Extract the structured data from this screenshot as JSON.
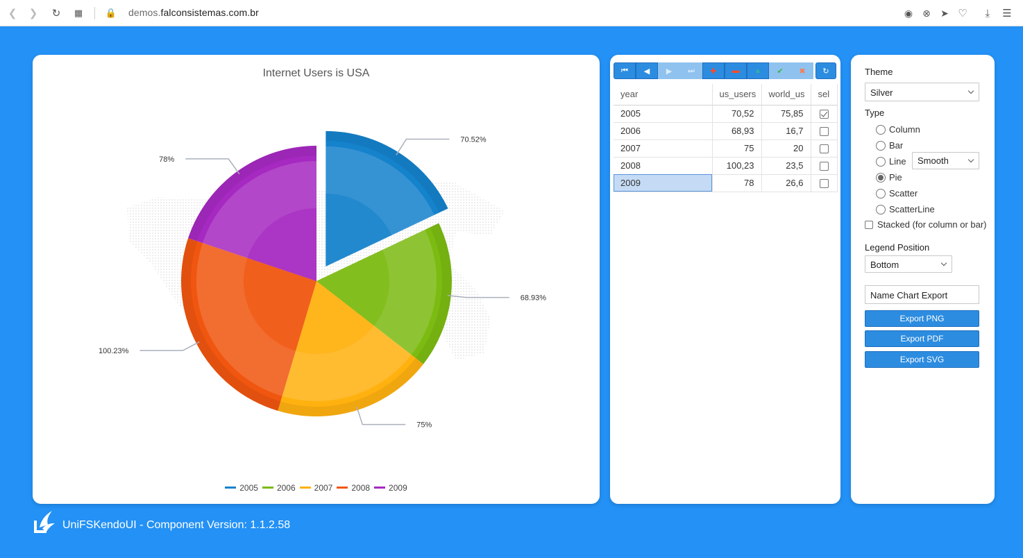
{
  "browser": {
    "url_prefix": "demos.",
    "url_domain": "falconsistemas.com.br"
  },
  "chart_data": {
    "type": "pie",
    "title": "Internet Users is USA",
    "categories": [
      "2005",
      "2006",
      "2007",
      "2008",
      "2009"
    ],
    "values": [
      70.52,
      68.93,
      75,
      100.23,
      78
    ],
    "labels": [
      "70.52%",
      "68.93%",
      "75%",
      "100.23%",
      "78%"
    ],
    "colors": [
      "#1582cc",
      "#7cbb12",
      "#ffb10f",
      "#f0560f",
      "#a629c1"
    ],
    "exploded": "2005",
    "legend_position": "bottom"
  },
  "grid": {
    "columns": [
      "year",
      "us_users",
      "world_us",
      "sel"
    ],
    "rows": [
      {
        "year": "2005",
        "us_users": "70,52",
        "world_us": "75,85",
        "sel": true
      },
      {
        "year": "2006",
        "us_users": "68,93",
        "world_us": "16,7",
        "sel": false
      },
      {
        "year": "2007",
        "us_users": "75",
        "world_us": "20",
        "sel": false
      },
      {
        "year": "2008",
        "us_users": "100,23",
        "world_us": "23,5",
        "sel": false
      },
      {
        "year": "2009",
        "us_users": "78",
        "world_us": "26,6",
        "sel": false
      }
    ],
    "selected_row": 4
  },
  "options": {
    "theme_label": "Theme",
    "theme_value": "Silver",
    "type_label": "Type",
    "types": [
      "Column",
      "Bar",
      "Line",
      "Pie",
      "Scatter",
      "ScatterLine"
    ],
    "selected_type": "Pie",
    "line_style": "Smooth",
    "stacked_label": "Stacked (for column or bar)",
    "legend_label": "Legend Position",
    "legend_value": "Bottom",
    "export_name": "Name Chart Export",
    "export_png": "Export PNG",
    "export_pdf": "Export PDF",
    "export_svg": "Export SVG"
  },
  "footer": {
    "text": "UniFSKendoUI - Component Version: 1.1.2.58"
  }
}
